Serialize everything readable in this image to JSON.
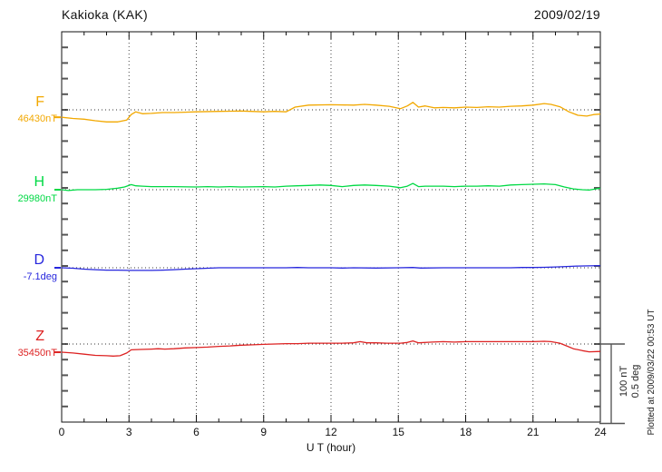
{
  "header": {
    "title": "Kakioka (KAK)",
    "date": "2009/02/19"
  },
  "scale_bar": {
    "line1": "100 nT",
    "line2": "0.5 deg"
  },
  "footer_note": "Plotted at 2009/03/22 00:53 UT",
  "chart_data": {
    "type": "line",
    "title": "Kakioka (KAK)",
    "date": "2009/02/19",
    "xlabel": "U T (hour)",
    "x_range": [
      0,
      24
    ],
    "x_ticks": [
      0,
      3,
      6,
      9,
      12,
      15,
      18,
      21,
      24
    ],
    "x_minor_tick_interval_hours": 1,
    "grid": "dotted vertical lines every 3 hours; dotted horizontal baseline per trace",
    "scale": {
      "nT_per_bar": 100,
      "deg_per_bar": 0.5
    },
    "series": [
      {
        "name": "F",
        "unit": "nT",
        "baseline_label": "46430nT",
        "baseline_value": 46430,
        "color": "#f2a800",
        "points": [
          [
            0,
            -9.5
          ],
          [
            0.5,
            -11
          ],
          [
            1,
            -12
          ],
          [
            1.5,
            -14
          ],
          [
            2,
            -15.5
          ],
          [
            2.5,
            -15.5
          ],
          [
            2.9,
            -13
          ],
          [
            3.1,
            -6
          ],
          [
            3.3,
            -2.5
          ],
          [
            3.6,
            -5
          ],
          [
            4,
            -4.5
          ],
          [
            4.5,
            -3.5
          ],
          [
            5,
            -3.5
          ],
          [
            5.5,
            -3
          ],
          [
            6,
            -2.5
          ],
          [
            7,
            -2
          ],
          [
            8,
            -1.5
          ],
          [
            9,
            -2.5
          ],
          [
            9.5,
            -2
          ],
          [
            10,
            -2.5
          ],
          [
            10.4,
            3.5
          ],
          [
            11,
            6
          ],
          [
            12,
            6.5
          ],
          [
            13,
            6
          ],
          [
            13.5,
            7
          ],
          [
            14,
            6
          ],
          [
            14.6,
            4.5
          ],
          [
            15.1,
            1.5
          ],
          [
            15.4,
            5
          ],
          [
            15.65,
            9.5
          ],
          [
            15.9,
            3.5
          ],
          [
            16.2,
            5
          ],
          [
            16.6,
            2.5
          ],
          [
            17,
            3
          ],
          [
            17.5,
            2.5
          ],
          [
            18,
            3.5
          ],
          [
            18.5,
            3
          ],
          [
            19,
            4
          ],
          [
            19.5,
            3.5
          ],
          [
            20,
            4.5
          ],
          [
            20.5,
            5
          ],
          [
            21,
            6
          ],
          [
            21.5,
            8
          ],
          [
            21.8,
            7
          ],
          [
            22.2,
            4
          ],
          [
            22.6,
            -2.5
          ],
          [
            23,
            -7
          ],
          [
            23.4,
            -8
          ],
          [
            23.7,
            -6
          ],
          [
            24,
            -5.5
          ]
        ]
      },
      {
        "name": "H",
        "unit": "nT",
        "baseline_label": "29980nT",
        "baseline_value": 29980,
        "color": "#00d944",
        "points": [
          [
            0,
            0
          ],
          [
            0.3,
            -1
          ],
          [
            0.7,
            0
          ],
          [
            1.5,
            0
          ],
          [
            2,
            0.5
          ],
          [
            2.5,
            2
          ],
          [
            2.8,
            3.5
          ],
          [
            3.1,
            6.5
          ],
          [
            3.3,
            5
          ],
          [
            3.6,
            4.5
          ],
          [
            4,
            4
          ],
          [
            4.5,
            4
          ],
          [
            5,
            4
          ],
          [
            6,
            3.5
          ],
          [
            6.5,
            4
          ],
          [
            7,
            3.5
          ],
          [
            7.5,
            4
          ],
          [
            8,
            3.5
          ],
          [
            9,
            4
          ],
          [
            9.5,
            3.5
          ],
          [
            10,
            4.5
          ],
          [
            10.5,
            5
          ],
          [
            11,
            5.5
          ],
          [
            11.5,
            6
          ],
          [
            12,
            5.5
          ],
          [
            12.5,
            4
          ],
          [
            13,
            5.5
          ],
          [
            13.5,
            6
          ],
          [
            14,
            5.5
          ],
          [
            14.6,
            4.5
          ],
          [
            15.1,
            2.5
          ],
          [
            15.4,
            4.5
          ],
          [
            15.65,
            8
          ],
          [
            15.9,
            4
          ],
          [
            16.2,
            4.5
          ],
          [
            17,
            4.5
          ],
          [
            17.5,
            4
          ],
          [
            18,
            4.5
          ],
          [
            18.5,
            4.5
          ],
          [
            19,
            5
          ],
          [
            19.5,
            4.5
          ],
          [
            20,
            6
          ],
          [
            20.5,
            6.5
          ],
          [
            21,
            7
          ],
          [
            21.5,
            7.5
          ],
          [
            22,
            6.5
          ],
          [
            22.4,
            3.5
          ],
          [
            22.8,
            1
          ],
          [
            23.2,
            0
          ],
          [
            23.5,
            -0.5
          ],
          [
            23.8,
            1
          ],
          [
            24,
            2
          ]
        ]
      },
      {
        "name": "D",
        "unit": "deg",
        "baseline_label": "-7.1deg",
        "baseline_value": -7.1,
        "color": "#2626dd",
        "points": [
          [
            0,
            0
          ],
          [
            0.5,
            -0.003
          ],
          [
            1,
            -0.009
          ],
          [
            1.5,
            -0.012
          ],
          [
            2,
            -0.015
          ],
          [
            2.5,
            -0.015
          ],
          [
            3,
            -0.017
          ],
          [
            3.5,
            -0.017
          ],
          [
            4,
            -0.017
          ],
          [
            4.5,
            -0.015
          ],
          [
            5,
            -0.012
          ],
          [
            5.5,
            -0.009
          ],
          [
            6,
            -0.006
          ],
          [
            6.5,
            -0.003
          ],
          [
            7,
            0
          ],
          [
            8,
            0
          ],
          [
            9,
            0
          ],
          [
            10,
            0
          ],
          [
            10.5,
            0.002
          ],
          [
            11,
            0
          ],
          [
            12,
            0
          ],
          [
            12.5,
            -0.002
          ],
          [
            13,
            0
          ],
          [
            14,
            -0.002
          ],
          [
            15,
            0
          ],
          [
            15.65,
            0.002
          ],
          [
            16,
            -0.002
          ],
          [
            17,
            0
          ],
          [
            18,
            0
          ],
          [
            19,
            0
          ],
          [
            20,
            0
          ],
          [
            20.5,
            0.002
          ],
          [
            21,
            0.002
          ],
          [
            21.5,
            0.003
          ],
          [
            22,
            0.005
          ],
          [
            22.5,
            0.008
          ],
          [
            23,
            0.011
          ],
          [
            23.5,
            0.012
          ],
          [
            24,
            0.014
          ]
        ]
      },
      {
        "name": "Z",
        "unit": "nT",
        "baseline_label": "35450nT",
        "baseline_value": 35450,
        "color": "#dd2222",
        "points": [
          [
            0,
            -10.5
          ],
          [
            0.5,
            -11.5
          ],
          [
            1,
            -13
          ],
          [
            1.5,
            -14.5
          ],
          [
            2,
            -15
          ],
          [
            2.3,
            -15.5
          ],
          [
            2.6,
            -15
          ],
          [
            2.9,
            -11.5
          ],
          [
            3.1,
            -7.5
          ],
          [
            3.5,
            -7
          ],
          [
            4,
            -6.5
          ],
          [
            4.3,
            -6
          ],
          [
            4.6,
            -6.5
          ],
          [
            5,
            -6
          ],
          [
            5.5,
            -5
          ],
          [
            6,
            -4.5
          ],
          [
            6.5,
            -4
          ],
          [
            7,
            -3
          ],
          [
            7.5,
            -2.5
          ],
          [
            8,
            -1.5
          ],
          [
            8.5,
            -1
          ],
          [
            9,
            -0.5
          ],
          [
            9.5,
            0
          ],
          [
            10,
            0.5
          ],
          [
            10.5,
            0.5
          ],
          [
            11,
            1
          ],
          [
            11.5,
            1
          ],
          [
            12,
            1
          ],
          [
            12.5,
            1
          ],
          [
            13,
            1.5
          ],
          [
            13.3,
            3
          ],
          [
            13.6,
            1.5
          ],
          [
            14,
            1.5
          ],
          [
            14.5,
            1
          ],
          [
            15.1,
            1
          ],
          [
            15.4,
            2
          ],
          [
            15.65,
            4
          ],
          [
            15.9,
            1.5
          ],
          [
            16.5,
            2.5
          ],
          [
            17,
            3
          ],
          [
            17.5,
            2.5
          ],
          [
            18,
            3
          ],
          [
            19,
            3
          ],
          [
            20,
            3
          ],
          [
            21,
            3
          ],
          [
            21.5,
            3.5
          ],
          [
            21.8,
            3
          ],
          [
            22.2,
            1
          ],
          [
            22.5,
            -2.5
          ],
          [
            22.8,
            -6
          ],
          [
            23.2,
            -8.5
          ],
          [
            23.5,
            -10
          ],
          [
            24,
            -9.5
          ]
        ]
      }
    ]
  }
}
